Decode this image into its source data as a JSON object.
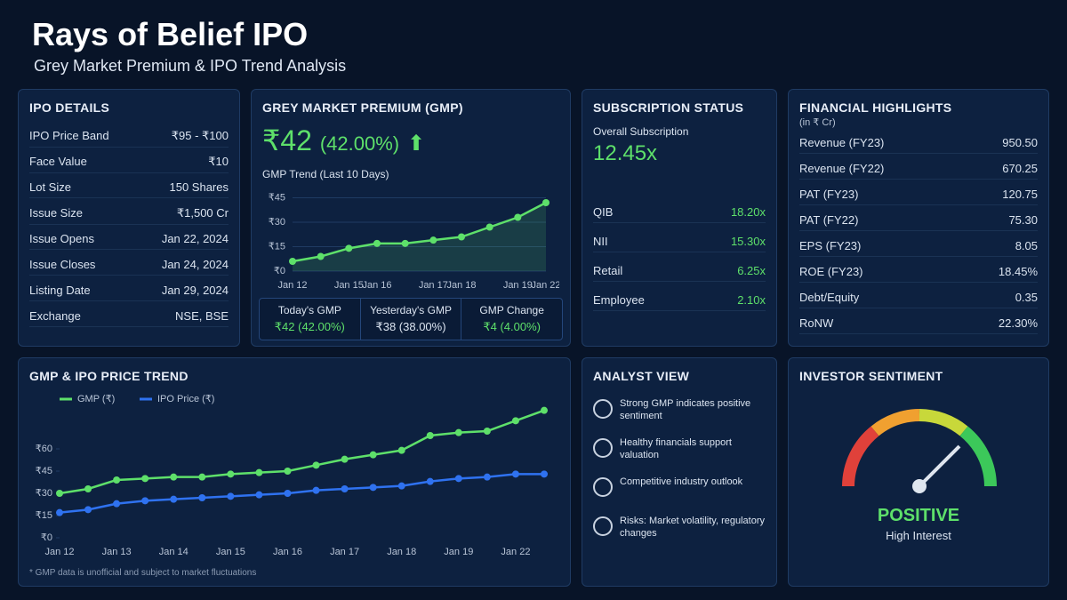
{
  "header": {
    "title": "Rays of Belief IPO",
    "subtitle": "Grey Market Premium & IPO Trend Analysis"
  },
  "ipo_details": {
    "title": "IPO DETAILS",
    "rows": [
      [
        "IPO Price Band",
        "₹95 - ₹100"
      ],
      [
        "Face Value",
        "₹10"
      ],
      [
        "Lot Size",
        "150 Shares"
      ],
      [
        "Issue Size",
        "₹1,500 Cr"
      ],
      [
        "Issue Opens",
        "Jan 22, 2024"
      ],
      [
        "Issue Closes",
        "Jan 24, 2024"
      ],
      [
        "Listing Date",
        "Jan 29, 2024"
      ],
      [
        "Exchange",
        "NSE, BSE"
      ]
    ]
  },
  "gmp": {
    "title": "GREY MARKET PREMIUM (GMP)",
    "value": "₹42",
    "percent": "(42.00%)",
    "trend_title": "GMP Trend (Last 10 Days)",
    "chart": {
      "type": "line",
      "categories": [
        "Jan 12",
        null,
        "Jan 15",
        "Jan 16",
        null,
        "Jan 17",
        "Jan 18",
        null,
        "Jan 19",
        "Jan 22"
      ],
      "values": [
        6,
        9,
        14,
        17,
        17,
        19,
        21,
        27,
        33,
        42
      ],
      "color": "#5ee06a",
      "ylim": [
        0,
        48
      ],
      "yticks": [
        {
          "value": 0,
          "label": "₹0"
        },
        {
          "value": 15,
          "label": "₹15"
        },
        {
          "value": 30,
          "label": "₹30"
        },
        {
          "value": 45,
          "label": "₹45"
        }
      ],
      "grid": true
    },
    "summary": [
      [
        "Today's GMP",
        "₹42 (42.00%)"
      ],
      [
        "Yesterday's GMP",
        "₹38 (38.00%)"
      ],
      [
        "GMP Change",
        "₹4 (4.00%)"
      ]
    ]
  },
  "subscription": {
    "title": "SUBSCRIPTION STATUS",
    "overall_label": "Overall Subscription",
    "overall_value": "12.45x",
    "rows": [
      [
        "QIB",
        "18.20x"
      ],
      [
        "NII",
        "15.30x"
      ],
      [
        "Retail",
        "6.25x"
      ],
      [
        "Employee",
        "2.10x"
      ]
    ]
  },
  "financials": {
    "title": "FINANCIAL HIGHLIGHTS",
    "unit": "(in ₹ Cr)",
    "rows": [
      [
        "Revenue (FY23)",
        "950.50"
      ],
      [
        "Revenue (FY22)",
        "670.25"
      ],
      [
        "PAT (FY23)",
        "120.75"
      ],
      [
        "PAT (FY22)",
        "75.30"
      ],
      [
        "EPS (FY23)",
        "8.05"
      ],
      [
        "ROE (FY23)",
        "18.45%"
      ],
      [
        "Debt/Equity",
        "0.35"
      ],
      [
        "RoNW",
        "22.30%"
      ]
    ]
  },
  "trend": {
    "title": "GMP & IPO PRICE TREND",
    "chart": {
      "type": "line",
      "categories": [
        "Jan 12",
        null,
        "Jan 13",
        null,
        "Jan 14",
        null,
        "Jan 15",
        null,
        "Jan 16",
        null,
        "Jan 17",
        null,
        "Jan 18",
        null,
        "Jan 19",
        null,
        "Jan 22",
        null
      ],
      "series": [
        {
          "name": "GMP (₹)",
          "color": "#5ee06a",
          "values": [
            30,
            33,
            39,
            40,
            41,
            41,
            43,
            44,
            45,
            49,
            53,
            56,
            59,
            69,
            71,
            72,
            79,
            86
          ]
        },
        {
          "name": "IPO Price (₹)",
          "color": "#2f72f0",
          "values": [
            17,
            19,
            23,
            25,
            26,
            27,
            28,
            29,
            30,
            32,
            33,
            34,
            35,
            38,
            40,
            41,
            43,
            43
          ]
        }
      ],
      "ylim": [
        0,
        90
      ],
      "yticks": [
        {
          "value": 0,
          "label": "₹0"
        },
        {
          "value": 15,
          "label": "₹15"
        },
        {
          "value": 30,
          "label": "₹30"
        },
        {
          "value": 45,
          "label": "₹45"
        },
        {
          "value": 60,
          "label": "₹60"
        }
      ],
      "grid": false
    },
    "footnote": "* GMP data is unofficial and subject to market fluctuations"
  },
  "analyst": {
    "title": "ANALYST VIEW",
    "items": [
      "Strong GMP indicates positive sentiment",
      "Healthy financials support valuation",
      "Competitive industry outlook",
      "Risks: Market volatility, regulatory changes"
    ]
  },
  "sentiment": {
    "title": "INVESTOR SENTIMENT",
    "status": "POSITIVE",
    "note": "High Interest"
  }
}
